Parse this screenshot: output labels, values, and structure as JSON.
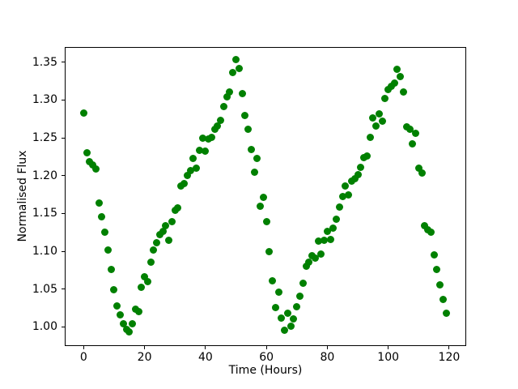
{
  "figure": {
    "background_color": "#ffffff",
    "spine_color": "#000000",
    "text_color": "#000000"
  },
  "chart_data": {
    "type": "scatter",
    "title": "",
    "xlabel": "Time (Hours)",
    "ylabel": "Normalised Flux",
    "legend": null,
    "grid": false,
    "marker_color": "#008000",
    "marker_shape": "circle",
    "x_ticks": [
      0,
      20,
      40,
      60,
      80,
      100,
      120
    ],
    "y_ticks": [
      1.0,
      1.05,
      1.1,
      1.15,
      1.2,
      1.25,
      1.3,
      1.35
    ],
    "xlim": [
      -6.2,
      125.6
    ],
    "ylim": [
      0.9746,
      1.3701
    ],
    "x": [
      0,
      1,
      2,
      3,
      4,
      5,
      6,
      7,
      8,
      9,
      10,
      11,
      12,
      13,
      14,
      15,
      16,
      17,
      18,
      19,
      20,
      21,
      22,
      23,
      24,
      25,
      26,
      27,
      28,
      29,
      30,
      31,
      32,
      33,
      34,
      35,
      36,
      37,
      38,
      39,
      40,
      41,
      42,
      43,
      44,
      45,
      46,
      47,
      48,
      49,
      50,
      51,
      52,
      53,
      54,
      55,
      56,
      57,
      58,
      59,
      60,
      61,
      62,
      63,
      64,
      65,
      66,
      67,
      68,
      69,
      70,
      71,
      72,
      73,
      74,
      75,
      76,
      77,
      78,
      79,
      80,
      81,
      82,
      83,
      84,
      85,
      86,
      87,
      88,
      89,
      90,
      91,
      92,
      93,
      94,
      95,
      96,
      97,
      98,
      99,
      100,
      101,
      102,
      103,
      104,
      105,
      106,
      107,
      108,
      109,
      110,
      111,
      112,
      113,
      114,
      115,
      116,
      117,
      118,
      119
    ],
    "y": [
      1.283,
      1.23,
      1.218,
      1.214,
      1.209,
      1.164,
      1.146,
      1.125,
      1.102,
      1.076,
      1.049,
      1.028,
      1.016,
      1.004,
      0.997,
      0.993,
      1.004,
      1.023,
      1.02,
      1.052,
      1.066,
      1.06,
      1.086,
      1.102,
      1.111,
      1.122,
      1.126,
      1.134,
      1.115,
      1.139,
      1.154,
      1.157,
      1.186,
      1.19,
      1.2,
      1.207,
      1.223,
      1.21,
      1.233,
      1.25,
      1.232,
      1.248,
      1.251,
      1.261,
      1.266,
      1.273,
      1.291,
      1.304,
      1.311,
      1.336,
      1.354,
      1.342,
      1.309,
      1.279,
      1.261,
      1.234,
      1.204,
      1.223,
      1.159,
      1.171,
      1.139,
      1.1,
      1.061,
      1.026,
      1.046,
      1.012,
      0.995,
      1.018,
      1.001,
      1.01,
      1.027,
      1.041,
      1.058,
      1.08,
      1.085,
      1.094,
      1.091,
      1.113,
      1.096,
      1.114,
      1.126,
      1.116,
      1.131,
      1.142,
      1.158,
      1.172,
      1.186,
      1.175,
      1.193,
      1.196,
      1.201,
      1.211,
      1.224,
      1.226,
      1.251,
      1.276,
      1.266,
      1.282,
      1.272,
      1.302,
      1.314,
      1.318,
      1.322,
      1.341,
      1.331,
      1.311,
      1.265,
      1.261,
      1.242,
      1.256,
      1.21,
      1.203,
      1.134,
      1.128,
      1.125,
      1.095,
      1.076,
      1.056,
      1.036,
      1.018
    ]
  }
}
